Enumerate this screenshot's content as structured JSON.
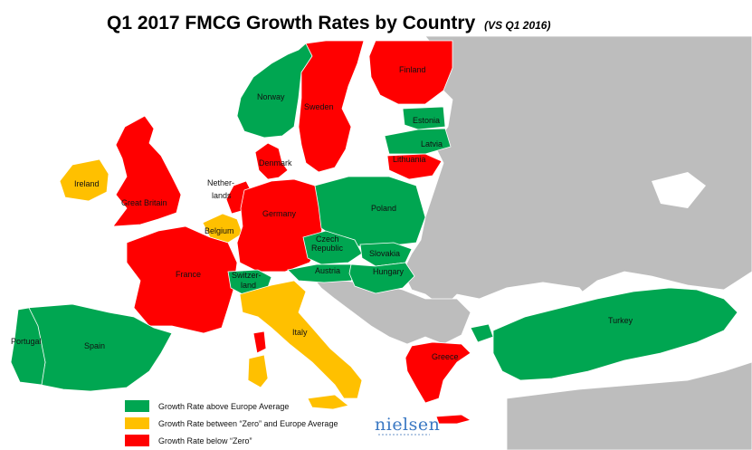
{
  "title": "Q1 2017 FMCG Growth Rates by Country",
  "subtitle": "(VS Q1 2016)",
  "colors": {
    "above_average": "#00a651",
    "between": "#ffc000",
    "below_zero": "#ff0000",
    "other_land": "#bdbdbd",
    "borders": "#ffffff"
  },
  "countries": {
    "norway": {
      "label": "Norway",
      "category": "above_average"
    },
    "sweden": {
      "label": "Sweden",
      "category": "below_zero"
    },
    "finland": {
      "label": "Finland",
      "category": "below_zero"
    },
    "estonia": {
      "label": "Estonia",
      "category": "above_average"
    },
    "latvia": {
      "label": "Latvia",
      "category": "above_average"
    },
    "lithuania": {
      "label": "Lithuania",
      "category": "below_zero"
    },
    "denmark": {
      "label": "Denmark",
      "category": "below_zero"
    },
    "ireland": {
      "label": "Ireland",
      "category": "between"
    },
    "great_britain": {
      "label": "Great Britain",
      "category": "below_zero"
    },
    "netherlands": {
      "label_line1": "Nether-",
      "label_line2": "lands",
      "category": "below_zero"
    },
    "belgium": {
      "label": "Belgium",
      "category": "between"
    },
    "germany": {
      "label": "Germany",
      "category": "below_zero"
    },
    "poland": {
      "label": "Poland",
      "category": "above_average"
    },
    "czech": {
      "label_line1": "Czech",
      "label_line2": "Republic",
      "category": "above_average"
    },
    "slovakia": {
      "label": "Slovakia",
      "category": "above_average"
    },
    "austria": {
      "label": "Austria",
      "category": "above_average"
    },
    "hungary": {
      "label": "Hungary",
      "category": "above_average"
    },
    "france": {
      "label": "France",
      "category": "below_zero"
    },
    "switzerland": {
      "label_line1": "Switzer-",
      "label_line2": "land",
      "category": "above_average"
    },
    "italy": {
      "label": "Italy",
      "category": "between"
    },
    "spain": {
      "label": "Spain",
      "category": "above_average"
    },
    "portugal": {
      "label": "Portugal",
      "category": "above_average"
    },
    "greece": {
      "label": "Greece",
      "category": "below_zero"
    },
    "turkey": {
      "label": "Turkey",
      "category": "above_average"
    }
  },
  "legend": [
    {
      "label": "Growth Rate above Europe Average",
      "color": "#00a651"
    },
    {
      "label": "Growth Rate between “Zero” and Europe Average",
      "color": "#ffc000"
    },
    {
      "label": "Growth Rate below “Zero”",
      "color": "#ff0000"
    }
  ],
  "logo_text": "nielsen"
}
